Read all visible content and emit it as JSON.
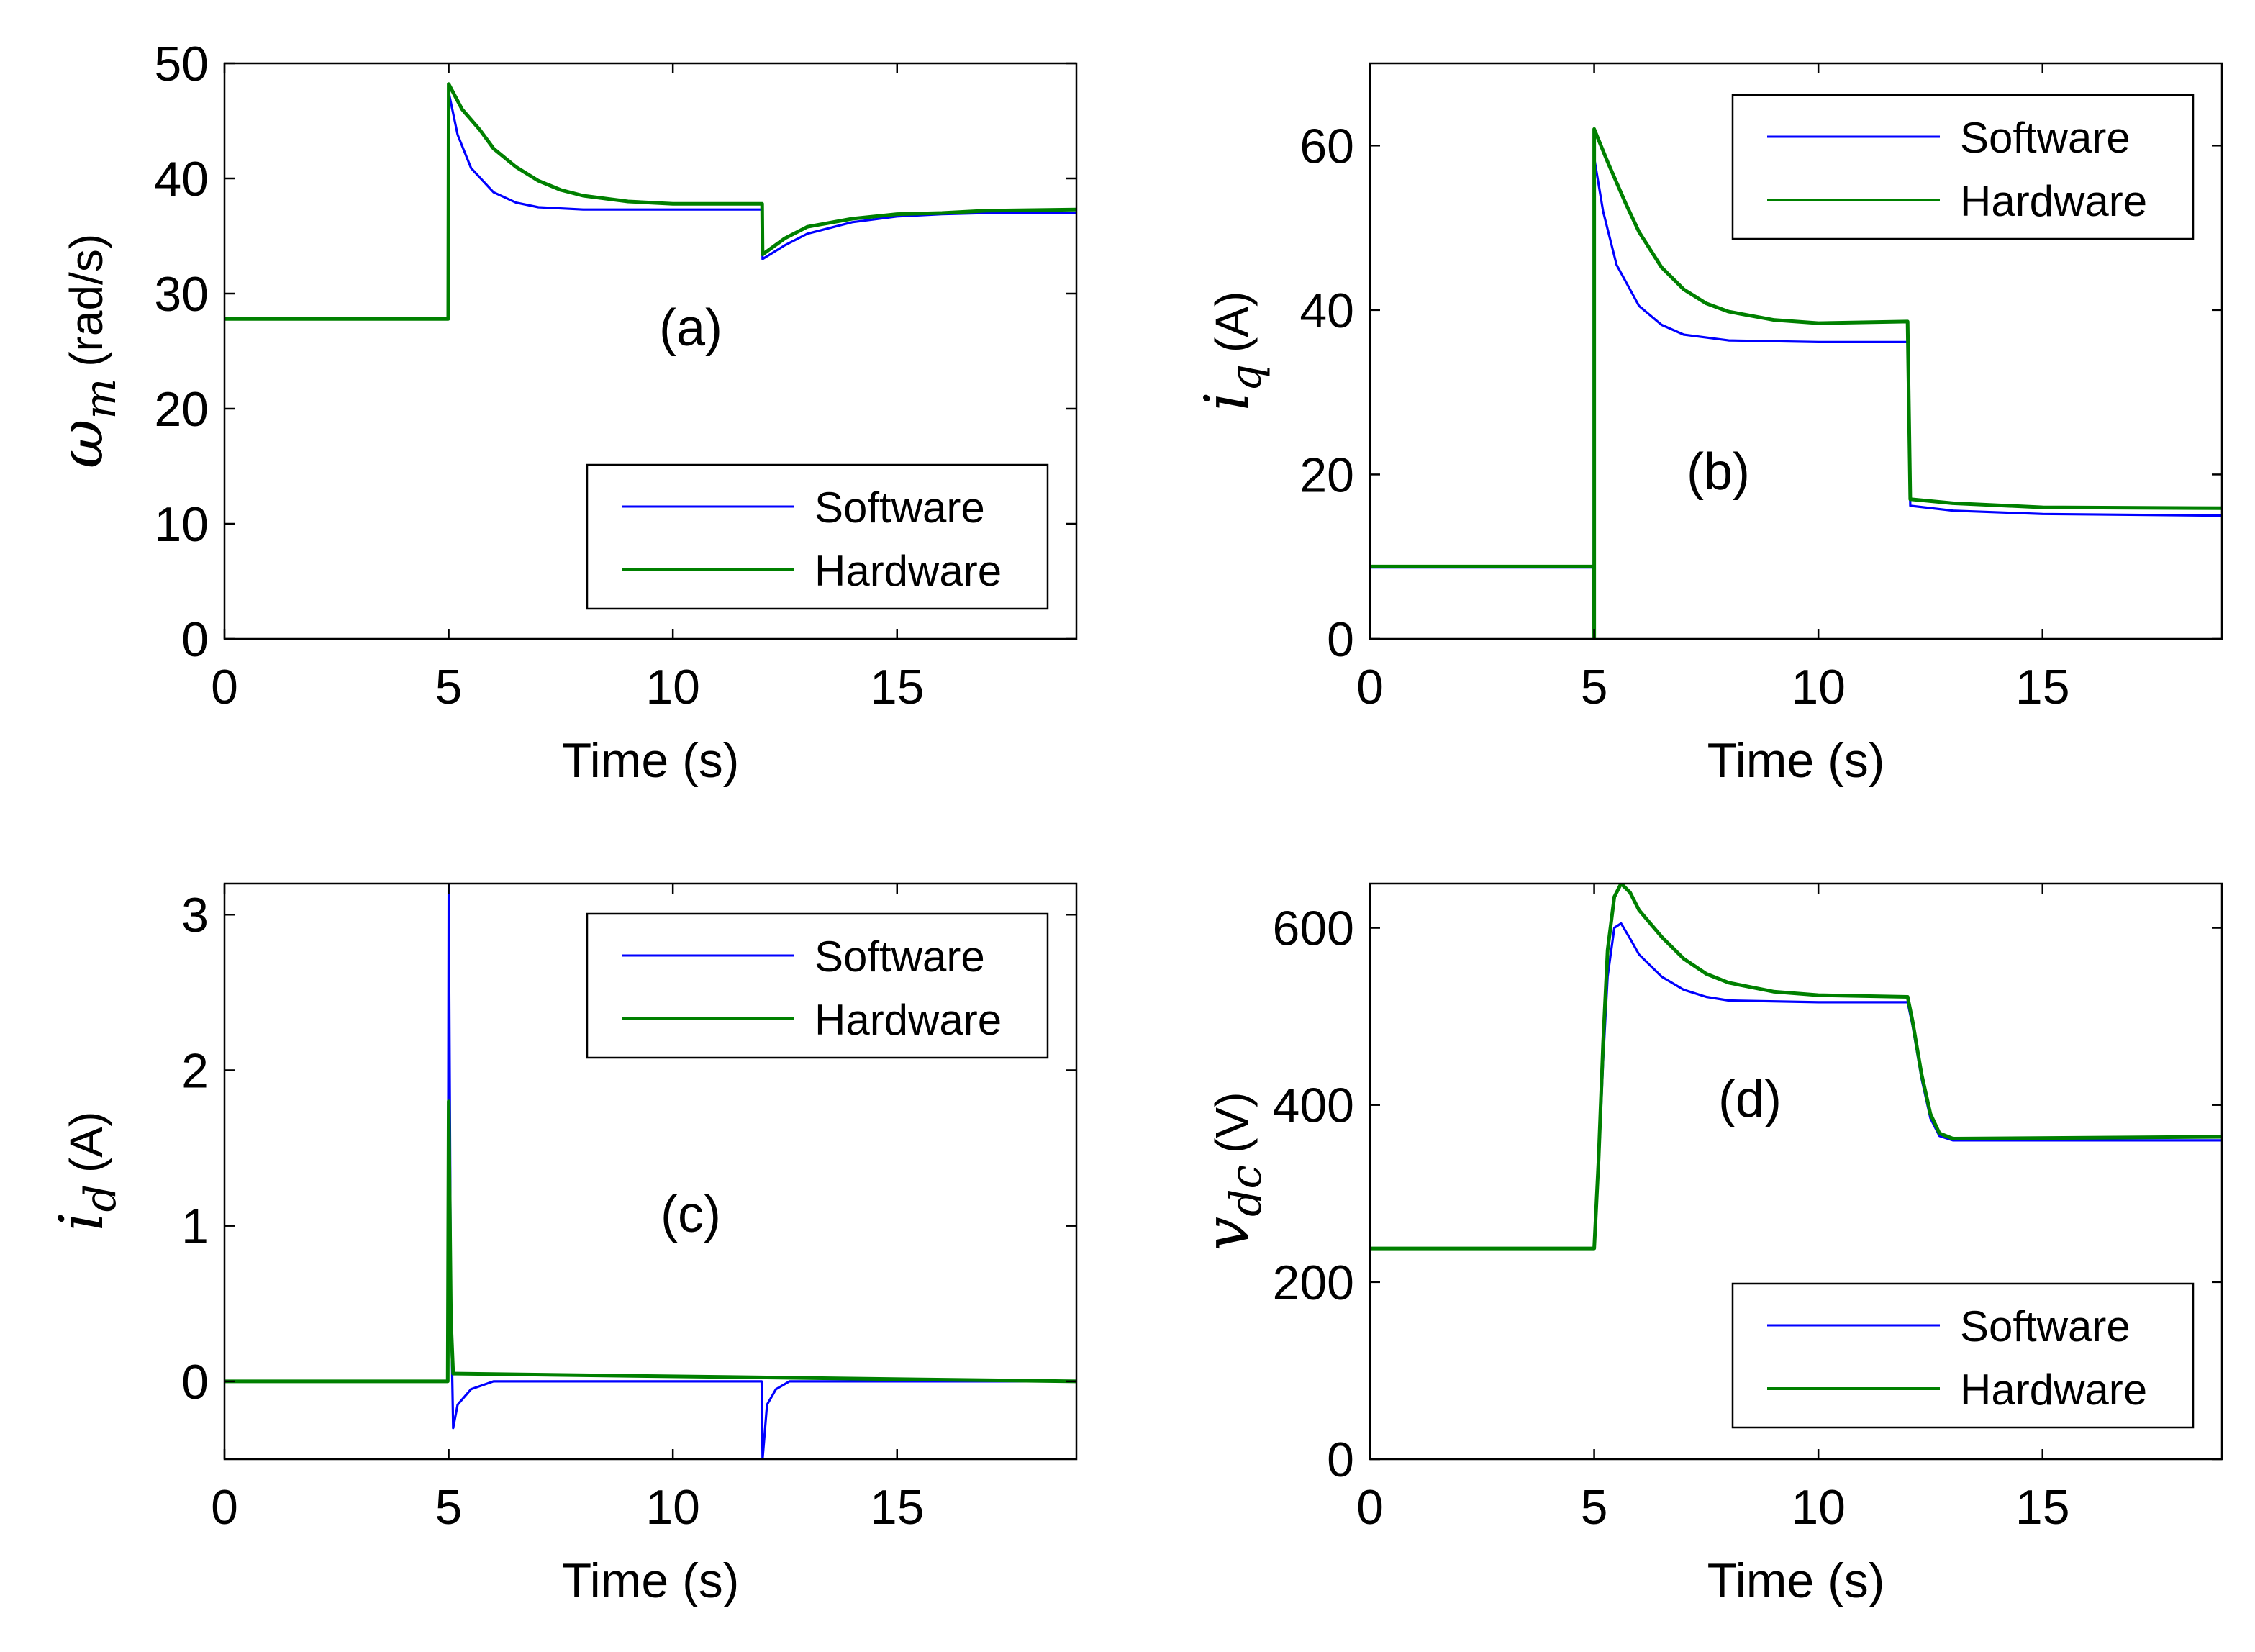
{
  "chart_data": [
    {
      "id": "a",
      "type": "line",
      "annotation": "(a)",
      "ylabel": {
        "symbol": "ω",
        "sub": "m",
        "unit": "(rad/s)"
      },
      "xlabel": "Time (s)",
      "xlim": [
        0,
        19
      ],
      "ylim": [
        0,
        50
      ],
      "xticks": [
        0,
        5,
        10,
        15
      ],
      "yticks": [
        0,
        10,
        20,
        30,
        40,
        50
      ],
      "legend": {
        "position": "bottom-right",
        "entries": [
          "Software",
          "Hardware"
        ]
      },
      "series": [
        {
          "name": "Software",
          "color": "#0000ff",
          "points": [
            [
              0,
              27.8
            ],
            [
              4.99,
              27.8
            ],
            [
              5.0,
              47.5
            ],
            [
              5.2,
              43.8
            ],
            [
              5.5,
              40.9
            ],
            [
              6.0,
              38.8
            ],
            [
              6.5,
              37.9
            ],
            [
              7.0,
              37.5
            ],
            [
              8.0,
              37.3
            ],
            [
              10.0,
              37.3
            ],
            [
              11.99,
              37.3
            ],
            [
              12.0,
              33.0
            ],
            [
              12.5,
              34.2
            ],
            [
              13.0,
              35.2
            ],
            [
              14.0,
              36.2
            ],
            [
              15.0,
              36.7
            ],
            [
              16.0,
              36.9
            ],
            [
              17.0,
              37.0
            ],
            [
              19.0,
              37.0
            ]
          ]
        },
        {
          "name": "Hardware",
          "color": "#008000",
          "points": [
            [
              0,
              27.8
            ],
            [
              4.99,
              27.8
            ],
            [
              5.0,
              48.2
            ],
            [
              5.3,
              46.0
            ],
            [
              5.7,
              44.2
            ],
            [
              6.0,
              42.6
            ],
            [
              6.5,
              41.0
            ],
            [
              7.0,
              39.8
            ],
            [
              7.5,
              39.0
            ],
            [
              8.0,
              38.5
            ],
            [
              9.0,
              38.0
            ],
            [
              10.0,
              37.8
            ],
            [
              11.99,
              37.8
            ],
            [
              12.0,
              33.4
            ],
            [
              12.5,
              34.8
            ],
            [
              13.0,
              35.8
            ],
            [
              14.0,
              36.5
            ],
            [
              15.0,
              36.9
            ],
            [
              16.0,
              37.0
            ],
            [
              17.0,
              37.2
            ],
            [
              19.0,
              37.3
            ]
          ]
        }
      ]
    },
    {
      "id": "b",
      "type": "line",
      "annotation": "(b)",
      "ylabel": {
        "symbol": "i",
        "sub": "q",
        "unit": "(A)"
      },
      "xlabel": "Time (s)",
      "xlim": [
        0,
        19
      ],
      "ylim": [
        0,
        70
      ],
      "xticks": [
        0,
        5,
        10,
        15
      ],
      "yticks": [
        0,
        20,
        40,
        60
      ],
      "legend": {
        "position": "top-right",
        "entries": [
          "Software",
          "Hardware"
        ]
      },
      "series": [
        {
          "name": "Software",
          "color": "#0000ff",
          "points": [
            [
              0,
              8.7
            ],
            [
              4.99,
              8.7
            ],
            [
              5.0,
              58.5
            ],
            [
              5.2,
              52.0
            ],
            [
              5.5,
              45.5
            ],
            [
              6.0,
              40.5
            ],
            [
              6.5,
              38.2
            ],
            [
              7.0,
              37.0
            ],
            [
              8.0,
              36.3
            ],
            [
              10.0,
              36.1
            ],
            [
              11.99,
              36.1
            ],
            [
              12.05,
              16.2
            ],
            [
              13.0,
              15.6
            ],
            [
              15.0,
              15.2
            ],
            [
              19.0,
              15.0
            ]
          ]
        },
        {
          "name": "Hardware",
          "color": "#008000",
          "points": [
            [
              0,
              8.8
            ],
            [
              4.99,
              8.8
            ],
            [
              5.0,
              0
            ],
            [
              5.0,
              62.0
            ],
            [
              5.3,
              58.0
            ],
            [
              5.7,
              53.0
            ],
            [
              6.0,
              49.5
            ],
            [
              6.5,
              45.2
            ],
            [
              7.0,
              42.5
            ],
            [
              7.5,
              40.8
            ],
            [
              8.0,
              39.8
            ],
            [
              9.0,
              38.8
            ],
            [
              10.0,
              38.4
            ],
            [
              11.99,
              38.6
            ],
            [
              12.05,
              17.0
            ],
            [
              13.0,
              16.5
            ],
            [
              15.0,
              16.0
            ],
            [
              19.0,
              15.9
            ]
          ]
        }
      ]
    },
    {
      "id": "c",
      "type": "line",
      "annotation": "(c)",
      "ylabel": {
        "symbol": "i",
        "sub": "d",
        "unit": "(A)"
      },
      "xlabel": "Time (s)",
      "xlim": [
        0,
        19
      ],
      "ylim": [
        -0.5,
        3.2
      ],
      "xticks": [
        0,
        5,
        10,
        15
      ],
      "yticks": [
        0,
        1,
        2,
        3
      ],
      "legend": {
        "position": "top-right",
        "entries": [
          "Software",
          "Hardware"
        ]
      },
      "series": [
        {
          "name": "Software",
          "color": "#0000ff",
          "points": [
            [
              0,
              0
            ],
            [
              4.98,
              0
            ],
            [
              5.0,
              3.2
            ],
            [
              5.05,
              0.5
            ],
            [
              5.1,
              -0.3
            ],
            [
              5.2,
              -0.15
            ],
            [
              5.5,
              -0.05
            ],
            [
              6.0,
              0
            ],
            [
              11.98,
              0
            ],
            [
              12.0,
              -0.5
            ],
            [
              12.1,
              -0.15
            ],
            [
              12.3,
              -0.05
            ],
            [
              12.6,
              0
            ],
            [
              19.0,
              0
            ]
          ]
        },
        {
          "name": "Hardware",
          "color": "#008000",
          "points": [
            [
              0,
              0
            ],
            [
              4.98,
              0
            ],
            [
              5.0,
              1.8
            ],
            [
              5.05,
              0.4
            ],
            [
              5.1,
              0.05
            ],
            [
              19.0,
              0
            ]
          ]
        }
      ]
    },
    {
      "id": "d",
      "type": "line",
      "annotation": "(d)",
      "ylabel": {
        "symbol": "v",
        "sub": "dc",
        "unit": "(V)"
      },
      "xlabel": "Time (s)",
      "xlim": [
        0,
        19
      ],
      "ylim": [
        0,
        650
      ],
      "xticks": [
        0,
        5,
        10,
        15
      ],
      "yticks": [
        0,
        200,
        400,
        600
      ],
      "legend": {
        "position": "bottom-right",
        "entries": [
          "Software",
          "Hardware"
        ]
      },
      "series": [
        {
          "name": "Software",
          "color": "#0000ff",
          "points": [
            [
              0,
              238
            ],
            [
              5.0,
              238
            ],
            [
              5.1,
              330
            ],
            [
              5.2,
              450
            ],
            [
              5.3,
              545
            ],
            [
              5.45,
              600
            ],
            [
              5.6,
              605
            ],
            [
              5.8,
              588
            ],
            [
              6.0,
              570
            ],
            [
              6.5,
              545
            ],
            [
              7.0,
              530
            ],
            [
              7.5,
              522
            ],
            [
              8.0,
              518
            ],
            [
              10.0,
              516
            ],
            [
              11.99,
              516
            ],
            [
              12.1,
              490
            ],
            [
              12.3,
              430
            ],
            [
              12.5,
              385
            ],
            [
              12.7,
              365
            ],
            [
              13.0,
              360
            ],
            [
              19.0,
              360
            ]
          ]
        },
        {
          "name": "Hardware",
          "color": "#008000",
          "points": [
            [
              0,
              238
            ],
            [
              5.0,
              238
            ],
            [
              5.1,
              340
            ],
            [
              5.2,
              470
            ],
            [
              5.3,
              575
            ],
            [
              5.45,
              635
            ],
            [
              5.6,
              650
            ],
            [
              5.8,
              640
            ],
            [
              6.0,
              620
            ],
            [
              6.5,
              590
            ],
            [
              7.0,
              565
            ],
            [
              7.5,
              548
            ],
            [
              8.0,
              538
            ],
            [
              9.0,
              528
            ],
            [
              10.0,
              524
            ],
            [
              11.99,
              522
            ],
            [
              12.1,
              495
            ],
            [
              12.3,
              435
            ],
            [
              12.5,
              390
            ],
            [
              12.7,
              368
            ],
            [
              13.0,
              362
            ],
            [
              19.0,
              364
            ]
          ]
        }
      ]
    }
  ]
}
